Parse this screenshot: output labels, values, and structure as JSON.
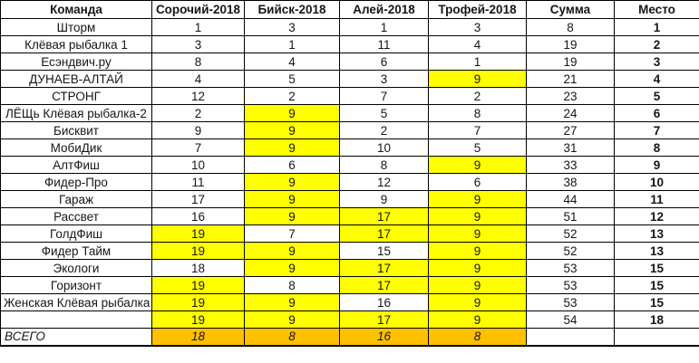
{
  "colors": {
    "highlight": "#FFFF00",
    "total_row": "#FFC000",
    "border": "#000000",
    "text": "#161616"
  },
  "table": {
    "headers": [
      "Команда",
      "Сорочий-2018",
      "Бийск-2018",
      "Алей-2018",
      "Трофей-2018",
      "Сумма",
      "Место"
    ],
    "rows": [
      {
        "team": "Шторм",
        "scores": [
          "1",
          "3",
          "1",
          "3"
        ],
        "hl": [
          0,
          0,
          0,
          0
        ],
        "sum": "8",
        "place": "1"
      },
      {
        "team": "Клёвая рыбалка 1",
        "scores": [
          "3",
          "1",
          "11",
          "4"
        ],
        "hl": [
          0,
          0,
          0,
          0
        ],
        "sum": "19",
        "place": "2"
      },
      {
        "team": "Есэндвич.ру",
        "scores": [
          "8",
          "4",
          "6",
          "1"
        ],
        "hl": [
          0,
          0,
          0,
          0
        ],
        "sum": "19",
        "place": "3"
      },
      {
        "team": "ДУНАЕВ-АЛТАЙ",
        "scores": [
          "4",
          "5",
          "3",
          "9"
        ],
        "hl": [
          0,
          0,
          0,
          1
        ],
        "sum": "21",
        "place": "4"
      },
      {
        "team": "СТРОНГ",
        "scores": [
          "12",
          "2",
          "7",
          "2"
        ],
        "hl": [
          0,
          0,
          0,
          0
        ],
        "sum": "23",
        "place": "5"
      },
      {
        "team": "ЛЁЩь Клёвая рыбалка-2",
        "scores": [
          "2",
          "9",
          "5",
          "8"
        ],
        "hl": [
          0,
          1,
          0,
          0
        ],
        "sum": "24",
        "place": "6"
      },
      {
        "team": "Бисквит",
        "scores": [
          "9",
          "9",
          "2",
          "7"
        ],
        "hl": [
          0,
          1,
          0,
          0
        ],
        "sum": "27",
        "place": "7"
      },
      {
        "team": "МобиДик",
        "scores": [
          "7",
          "9",
          "10",
          "5"
        ],
        "hl": [
          0,
          1,
          0,
          0
        ],
        "sum": "31",
        "place": "8"
      },
      {
        "team": "АлтФиш",
        "scores": [
          "10",
          "6",
          "8",
          "9"
        ],
        "hl": [
          0,
          0,
          0,
          1
        ],
        "sum": "33",
        "place": "9"
      },
      {
        "team": "Фидер-Про",
        "scores": [
          "11",
          "9",
          "12",
          "6"
        ],
        "hl": [
          0,
          1,
          0,
          0
        ],
        "sum": "38",
        "place": "10"
      },
      {
        "team": "Гараж",
        "scores": [
          "17",
          "9",
          "9",
          "9"
        ],
        "hl": [
          0,
          1,
          0,
          1
        ],
        "sum": "44",
        "place": "11"
      },
      {
        "team": "Рассвет",
        "scores": [
          "16",
          "9",
          "17",
          "9"
        ],
        "hl": [
          0,
          1,
          1,
          1
        ],
        "sum": "51",
        "place": "12"
      },
      {
        "team": "ГолдФиш",
        "scores": [
          "19",
          "7",
          "17",
          "9"
        ],
        "hl": [
          1,
          0,
          1,
          1
        ],
        "sum": "52",
        "place": "13"
      },
      {
        "team": "Фидер Тайм",
        "scores": [
          "19",
          "9",
          "15",
          "9"
        ],
        "hl": [
          1,
          1,
          0,
          1
        ],
        "sum": "52",
        "place": "13"
      },
      {
        "team": "Экологи",
        "scores": [
          "18",
          "9",
          "17",
          "9"
        ],
        "hl": [
          0,
          1,
          1,
          1
        ],
        "sum": "53",
        "place": "15"
      },
      {
        "team": "Горизонт",
        "scores": [
          "19",
          "8",
          "17",
          "9"
        ],
        "hl": [
          1,
          0,
          1,
          1
        ],
        "sum": "53",
        "place": "15"
      },
      {
        "team": "Женская Клёвая рыбалка",
        "scores": [
          "19",
          "9",
          "16",
          "9"
        ],
        "hl": [
          1,
          1,
          0,
          1
        ],
        "sum": "53",
        "place": "15"
      },
      {
        "team": "",
        "scores": [
          "19",
          "9",
          "17",
          "9"
        ],
        "hl": [
          1,
          1,
          1,
          1
        ],
        "sum": "54",
        "place": "18"
      }
    ],
    "total_row": {
      "label": "ВСЕГО",
      "scores": [
        "18",
        "8",
        "16",
        "8"
      ],
      "sum": "",
      "place": ""
    }
  }
}
